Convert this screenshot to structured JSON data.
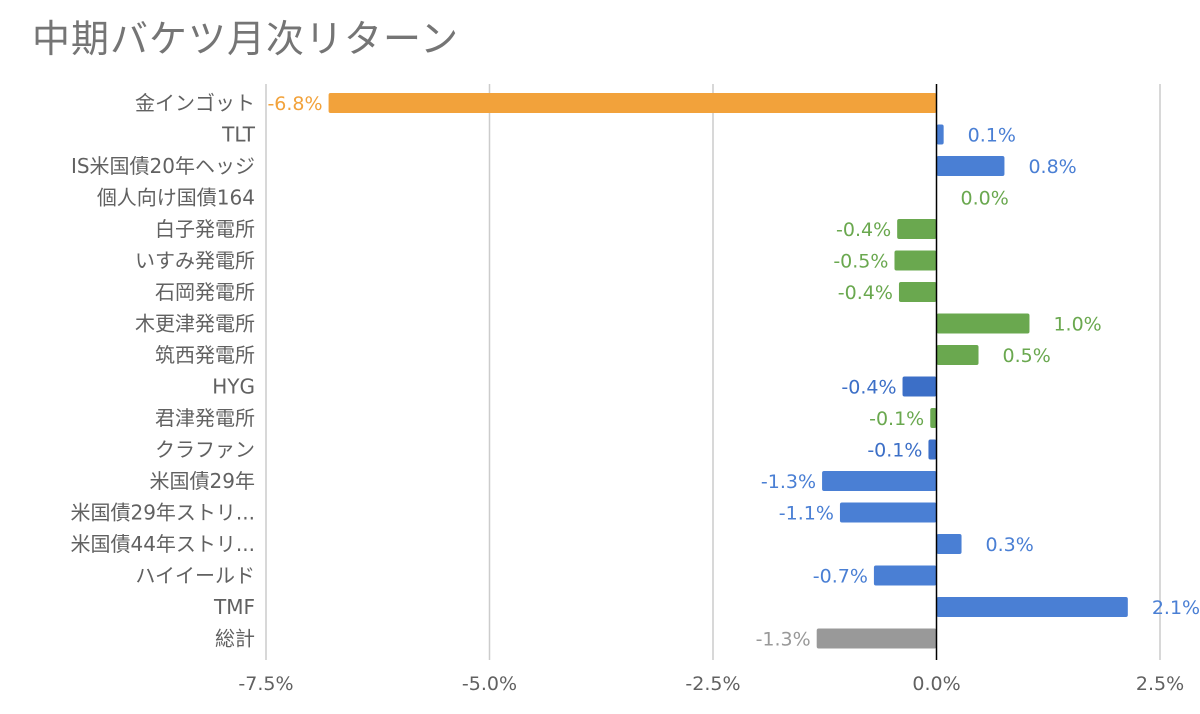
{
  "chart_data": {
    "type": "bar",
    "orientation": "horizontal",
    "title": "中期バケツ月次リターン",
    "xlabel": "",
    "ylabel": "",
    "xlim": [
      -7.5,
      2.5
    ],
    "grid": true,
    "legend": "none",
    "x_ticks": [
      -7.5,
      -5.0,
      -2.5,
      0.0,
      2.5
    ],
    "x_tick_labels": [
      "-7.5%",
      "-5.0%",
      "-2.5%",
      "0.0%",
      "2.5%"
    ],
    "categories": [
      "金インゴット",
      "TLT",
      "IS米国債20年ヘッジ",
      "個人向け国債164",
      "白子発電所",
      "いすみ発電所",
      "石岡発電所",
      "木更津発電所",
      "筑西発電所",
      "HYG",
      "君津発電所",
      "クラファン",
      "米国債29年",
      "米国債29年ストリ...",
      "米国債44年ストリ...",
      "ハイイールド",
      "TMF",
      "総計"
    ],
    "values": [
      -6.8,
      0.1,
      0.8,
      0.0,
      -0.4,
      -0.5,
      -0.4,
      1.0,
      0.5,
      -0.4,
      -0.1,
      -0.1,
      -1.3,
      -1.1,
      0.3,
      -0.7,
      2.1,
      -1.3
    ],
    "plot_values": [
      -6.8,
      0.08,
      0.76,
      0.0,
      -0.44,
      -0.47,
      -0.42,
      1.04,
      0.47,
      -0.38,
      -0.07,
      -0.09,
      -1.28,
      -1.08,
      0.28,
      -0.7,
      2.14,
      -1.34
    ],
    "data_labels": [
      "-6.8%",
      "0.1%",
      "0.8%",
      "0.0%",
      "-0.4%",
      "-0.5%",
      "-0.4%",
      "1.0%",
      "0.5%",
      "-0.4%",
      "-0.1%",
      "-0.1%",
      "-1.3%",
      "-1.1%",
      "0.3%",
      "-0.7%",
      "2.1%",
      "-1.3%"
    ],
    "bar_colors": [
      "#f2a23b",
      "#4a7fd4",
      "#4a7fd4",
      "#6aa84f",
      "#6aa84f",
      "#6aa84f",
      "#6aa84f",
      "#6aa84f",
      "#6aa84f",
      "#3c6fc7",
      "#6aa84f",
      "#3c6fc7",
      "#4a7fd4",
      "#4a7fd4",
      "#4a7fd4",
      "#4a7fd4",
      "#4a7fd4",
      "#999999"
    ],
    "label_colors": [
      "#f2a23b",
      "#4a7fd4",
      "#4a7fd4",
      "#6aa84f",
      "#6aa84f",
      "#6aa84f",
      "#6aa84f",
      "#6aa84f",
      "#6aa84f",
      "#3c6fc7",
      "#6aa84f",
      "#3c6fc7",
      "#4a7fd4",
      "#4a7fd4",
      "#4a7fd4",
      "#4a7fd4",
      "#4a7fd4",
      "#999999"
    ],
    "colors": {
      "grid": "#cccccc",
      "zero_line": "#000000",
      "text": "#616161",
      "title": "#757575"
    }
  }
}
